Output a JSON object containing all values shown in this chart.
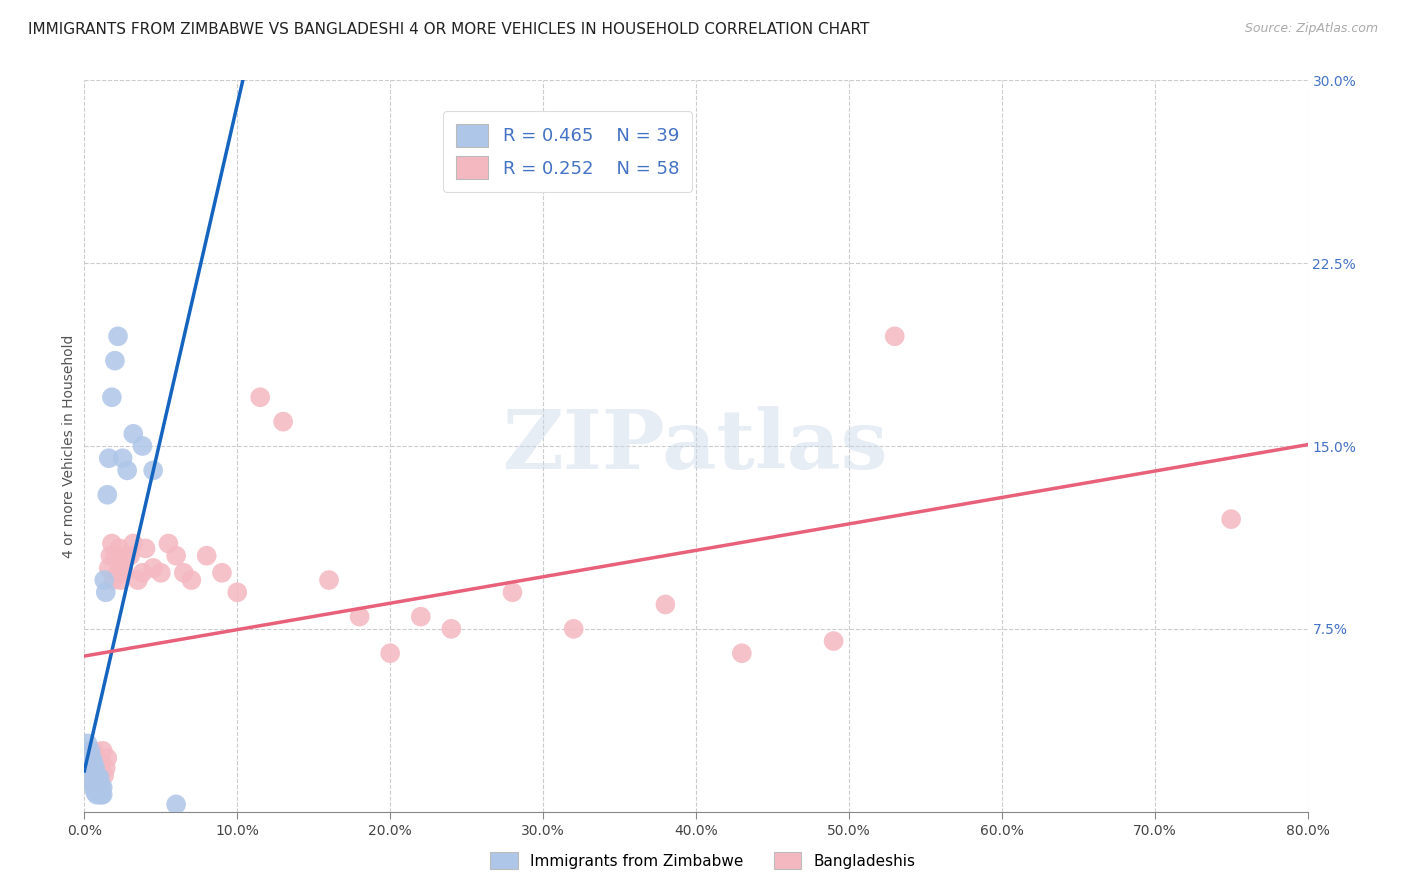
{
  "title": "IMMIGRANTS FROM ZIMBABWE VS BANGLADESHI 4 OR MORE VEHICLES IN HOUSEHOLD CORRELATION CHART",
  "source": "Source: ZipAtlas.com",
  "ylabel": "4 or more Vehicles in Household",
  "xmin": 0.0,
  "xmax": 0.8,
  "ymin": 0.0,
  "ymax": 0.3,
  "xticks": [
    0.0,
    0.1,
    0.2,
    0.3,
    0.4,
    0.5,
    0.6,
    0.7,
    0.8
  ],
  "yticks": [
    0.0,
    0.075,
    0.15,
    0.225,
    0.3
  ],
  "xtick_labels": [
    "0.0%",
    "",
    "",
    "",
    "",
    "",
    "",
    "",
    "80.0%"
  ],
  "ytick_labels": [
    "",
    "7.5%",
    "15.0%",
    "22.5%",
    "30.0%"
  ],
  "r1": "0.465",
  "n1": "39",
  "r2": "0.252",
  "n2": "58",
  "series1_color": "#aec6e8",
  "series2_color": "#f4b8c1",
  "line1_color": "#1565c0",
  "line2_color": "#e8607a",
  "watermark_text": "ZIPatlas",
  "title_fontsize": 11,
  "tick_fontsize": 10,
  "blue_x": [
    0.002,
    0.002,
    0.003,
    0.004,
    0.004,
    0.005,
    0.005,
    0.005,
    0.006,
    0.006,
    0.006,
    0.007,
    0.007,
    0.007,
    0.008,
    0.008,
    0.008,
    0.009,
    0.009,
    0.01,
    0.01,
    0.01,
    0.011,
    0.011,
    0.012,
    0.012,
    0.013,
    0.014,
    0.015,
    0.016,
    0.018,
    0.02,
    0.022,
    0.025,
    0.028,
    0.032,
    0.038,
    0.045,
    0.06
  ],
  "blue_y": [
    0.022,
    0.028,
    0.02,
    0.018,
    0.025,
    0.012,
    0.018,
    0.022,
    0.01,
    0.015,
    0.02,
    0.008,
    0.013,
    0.018,
    0.007,
    0.01,
    0.015,
    0.008,
    0.012,
    0.007,
    0.01,
    0.014,
    0.007,
    0.01,
    0.007,
    0.01,
    0.095,
    0.09,
    0.13,
    0.145,
    0.17,
    0.185,
    0.195,
    0.145,
    0.14,
    0.155,
    0.15,
    0.14,
    0.003
  ],
  "pink_x": [
    0.001,
    0.002,
    0.003,
    0.003,
    0.004,
    0.005,
    0.005,
    0.006,
    0.006,
    0.007,
    0.007,
    0.008,
    0.009,
    0.01,
    0.011,
    0.012,
    0.013,
    0.014,
    0.015,
    0.016,
    0.017,
    0.018,
    0.019,
    0.02,
    0.022,
    0.023,
    0.024,
    0.025,
    0.026,
    0.028,
    0.03,
    0.032,
    0.035,
    0.038,
    0.04,
    0.045,
    0.05,
    0.055,
    0.06,
    0.065,
    0.07,
    0.08,
    0.09,
    0.1,
    0.115,
    0.13,
    0.16,
    0.18,
    0.2,
    0.22,
    0.24,
    0.28,
    0.32,
    0.38,
    0.43,
    0.49,
    0.53,
    0.75
  ],
  "pink_y": [
    0.022,
    0.018,
    0.015,
    0.02,
    0.018,
    0.012,
    0.022,
    0.018,
    0.025,
    0.012,
    0.02,
    0.015,
    0.018,
    0.015,
    0.02,
    0.025,
    0.015,
    0.018,
    0.022,
    0.1,
    0.105,
    0.11,
    0.095,
    0.105,
    0.098,
    0.108,
    0.095,
    0.1,
    0.098,
    0.105,
    0.105,
    0.11,
    0.095,
    0.098,
    0.108,
    0.1,
    0.098,
    0.11,
    0.105,
    0.098,
    0.095,
    0.105,
    0.098,
    0.09,
    0.17,
    0.16,
    0.095,
    0.08,
    0.065,
    0.08,
    0.075,
    0.09,
    0.075,
    0.085,
    0.065,
    0.07,
    0.195,
    0.12
  ]
}
